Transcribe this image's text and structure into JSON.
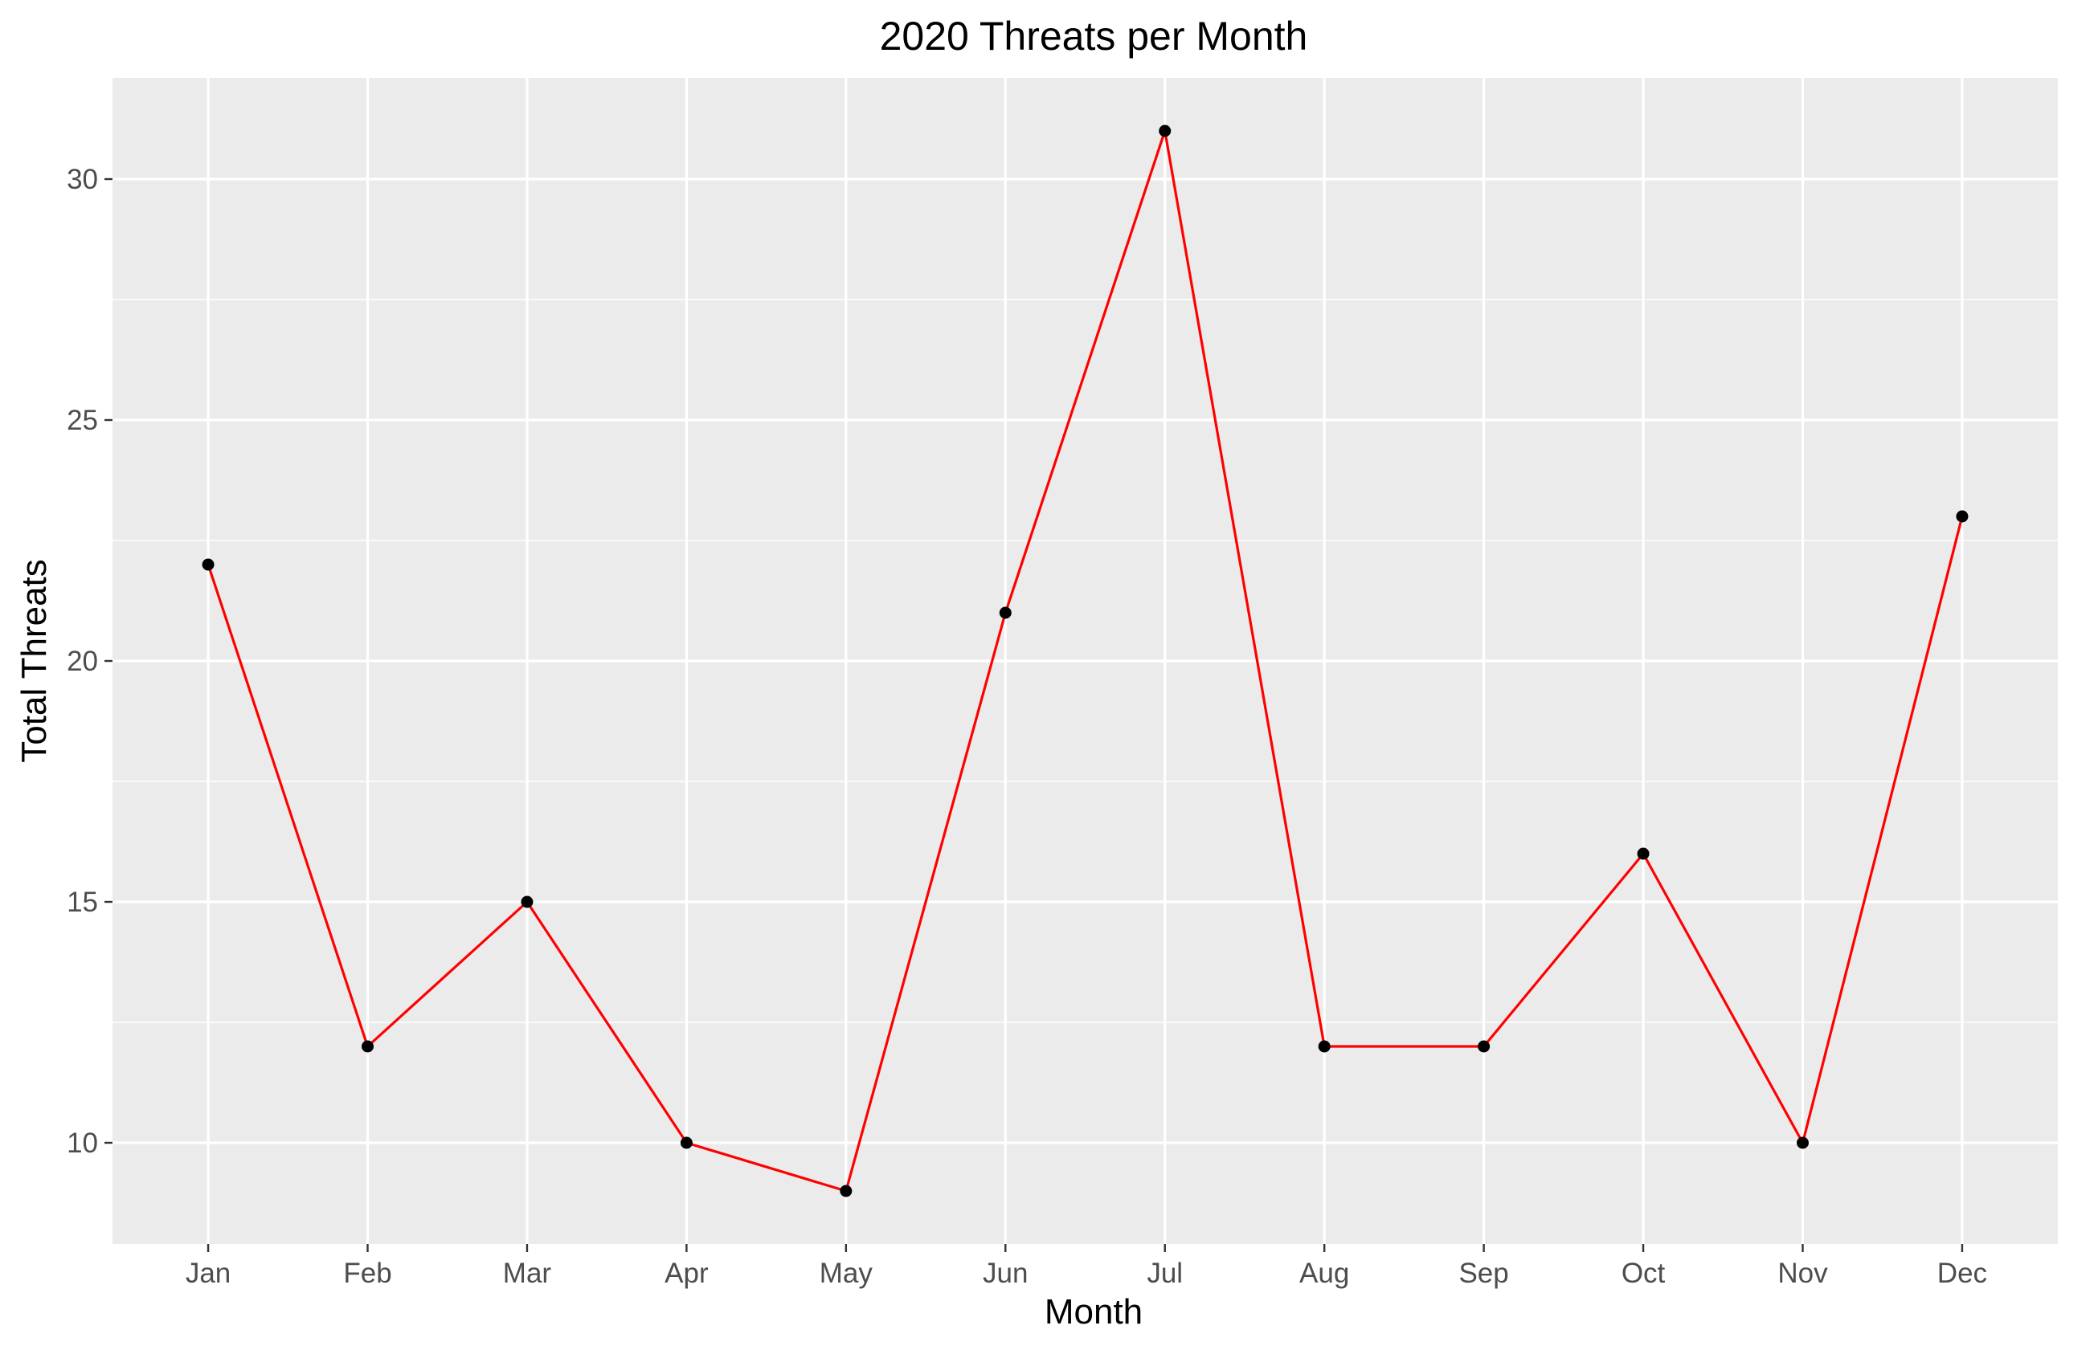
{
  "chart_data": {
    "type": "line",
    "title": "2020 Threats per Month",
    "xlabel": "Month",
    "ylabel": "Total Threats",
    "categories": [
      "Jan",
      "Feb",
      "Mar",
      "Apr",
      "May",
      "Jun",
      "Jul",
      "Aug",
      "Sep",
      "Oct",
      "Nov",
      "Dec"
    ],
    "series": [
      {
        "values": [
          22,
          12,
          15,
          10,
          9,
          21,
          31,
          12,
          12,
          16,
          10,
          23
        ]
      }
    ],
    "yticks": [
      10,
      15,
      20,
      25,
      30
    ],
    "ylim": [
      7.9,
      32.1
    ],
    "grid": true,
    "legend": "none",
    "colors": {
      "panel_background": "#ebebeb",
      "grid": "#ffffff",
      "line": "#ff0000",
      "point": "#000000",
      "tick_mark": "#333333",
      "tick_text": "#4d4d4d"
    }
  }
}
